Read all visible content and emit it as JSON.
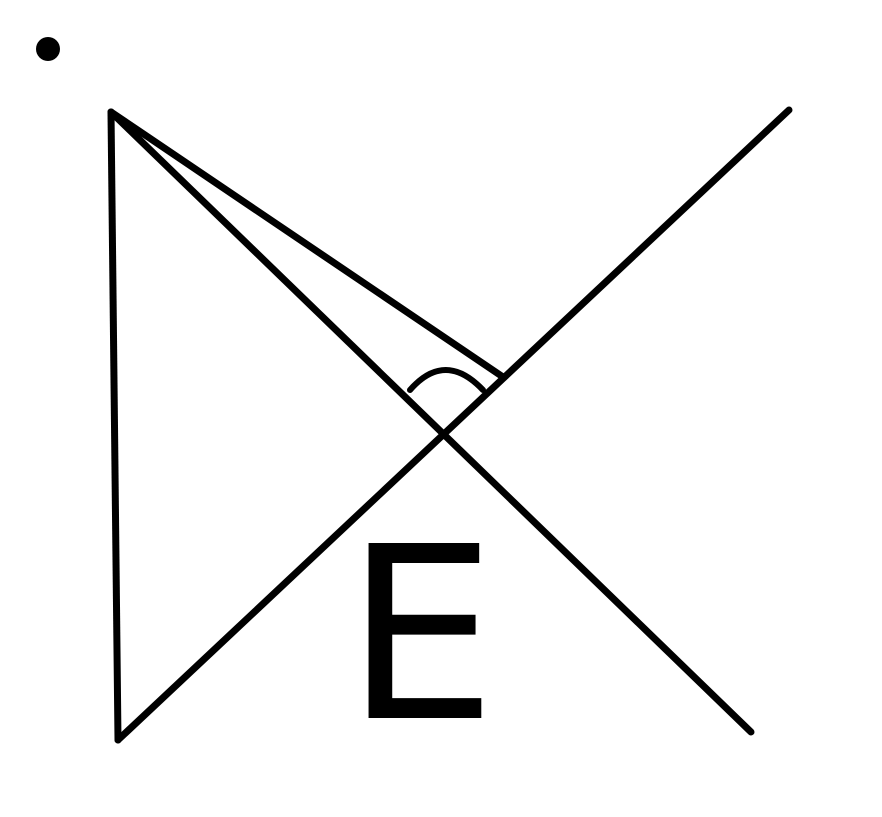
{
  "diagram": {
    "point_label": "E",
    "colors": {
      "line": "#000000",
      "background": "#ffffff"
    }
  }
}
